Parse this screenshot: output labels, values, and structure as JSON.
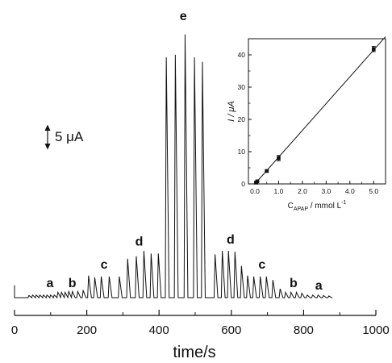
{
  "chart_data": [
    {
      "type": "line",
      "title": "",
      "xlabel": "time/s",
      "ylabel": "",
      "xlim": [
        0,
        1000
      ],
      "x_ticks": [
        "0",
        "200",
        "400",
        "600",
        "800",
        "1000"
      ],
      "grid": false,
      "scale_bar": {
        "label": "5 μA",
        "value_uA": 5
      },
      "baseline_end_s": 880,
      "peaks": [
        {
          "x": 40,
          "y": 0.25
        },
        {
          "x": 50,
          "y": 0.3
        },
        {
          "x": 60,
          "y": 0.3
        },
        {
          "x": 70,
          "y": 0.3
        },
        {
          "x": 80,
          "y": 0.3
        },
        {
          "x": 90,
          "y": 0.3
        },
        {
          "x": 100,
          "y": 0.3
        },
        {
          "x": 110,
          "y": 0.3
        },
        {
          "x": 120,
          "y": 0.6
        },
        {
          "x": 130,
          "y": 0.6
        },
        {
          "x": 140,
          "y": 0.6
        },
        {
          "x": 150,
          "y": 0.7
        },
        {
          "x": 160,
          "y": 0.7
        },
        {
          "x": 175,
          "y": 0.7
        },
        {
          "x": 190,
          "y": 0.8
        },
        {
          "x": 205,
          "y": 2.5
        },
        {
          "x": 222,
          "y": 2.3
        },
        {
          "x": 240,
          "y": 2.4
        },
        {
          "x": 262,
          "y": 2.4
        },
        {
          "x": 290,
          "y": 2.4
        },
        {
          "x": 313,
          "y": 4.4
        },
        {
          "x": 337,
          "y": 4.7
        },
        {
          "x": 358,
          "y": 5.3
        },
        {
          "x": 378,
          "y": 5.0
        },
        {
          "x": 398,
          "y": 5.0
        },
        {
          "x": 420,
          "y": 27.2
        },
        {
          "x": 445,
          "y": 27.5
        },
        {
          "x": 472,
          "y": 29.8
        },
        {
          "x": 498,
          "y": 27.2
        },
        {
          "x": 520,
          "y": 26.7
        },
        {
          "x": 555,
          "y": 4.9
        },
        {
          "x": 575,
          "y": 5.3
        },
        {
          "x": 592,
          "y": 5.3
        },
        {
          "x": 610,
          "y": 5.2
        },
        {
          "x": 628,
          "y": 3.6
        },
        {
          "x": 645,
          "y": 2.5
        },
        {
          "x": 662,
          "y": 2.4
        },
        {
          "x": 680,
          "y": 2.4
        },
        {
          "x": 697,
          "y": 2.4
        },
        {
          "x": 715,
          "y": 2.0
        },
        {
          "x": 735,
          "y": 1.0
        },
        {
          "x": 750,
          "y": 0.6
        },
        {
          "x": 765,
          "y": 0.6
        },
        {
          "x": 780,
          "y": 0.6
        },
        {
          "x": 795,
          "y": 0.5
        },
        {
          "x": 810,
          "y": 0.3
        },
        {
          "x": 825,
          "y": 0.3
        },
        {
          "x": 840,
          "y": 0.3
        },
        {
          "x": 855,
          "y": 0.25
        },
        {
          "x": 870,
          "y": 0.2
        }
      ],
      "annotations": [
        {
          "text": "a",
          "x": 98,
          "y": 1.2
        },
        {
          "text": "b",
          "x": 160,
          "y": 1.2
        },
        {
          "text": "c",
          "x": 248,
          "y": 3.3
        },
        {
          "text": "d",
          "x": 345,
          "y": 5.9
        },
        {
          "text": "e",
          "x": 467,
          "y": 31.4
        },
        {
          "text": "d",
          "x": 598,
          "y": 6.1
        },
        {
          "text": "c",
          "x": 685,
          "y": 3.3
        },
        {
          "text": "b",
          "x": 772,
          "y": 1.2
        },
        {
          "text": "a",
          "x": 842,
          "y": 0.9
        }
      ]
    },
    {
      "type": "scatter",
      "title": "",
      "xlabel": "C",
      "xlabel_sub": "APAP",
      "xlabel_suffix": " / mmol L",
      "xlabel_sup": "-1",
      "ylabel": "I / μA",
      "xlim": [
        0,
        5.5
      ],
      "ylim": [
        0,
        45
      ],
      "x_ticks": [
        "0.0",
        "1.0",
        "2.0",
        "3.0",
        "4.0",
        "5.0"
      ],
      "y_ticks": [
        "0",
        "10",
        "20",
        "30",
        "40"
      ],
      "points": [
        {
          "x": 0.05,
          "y": 0.4,
          "err": 0.2
        },
        {
          "x": 0.1,
          "y": 0.8,
          "err": 0.2
        },
        {
          "x": 0.5,
          "y": 4.0,
          "err": 0.3
        },
        {
          "x": 1.0,
          "y": 8.0,
          "err": 0.8
        },
        {
          "x": 5.0,
          "y": 41.8,
          "err": 0.8
        }
      ],
      "fit_line": {
        "slope": 8.3,
        "intercept": 0
      }
    }
  ]
}
